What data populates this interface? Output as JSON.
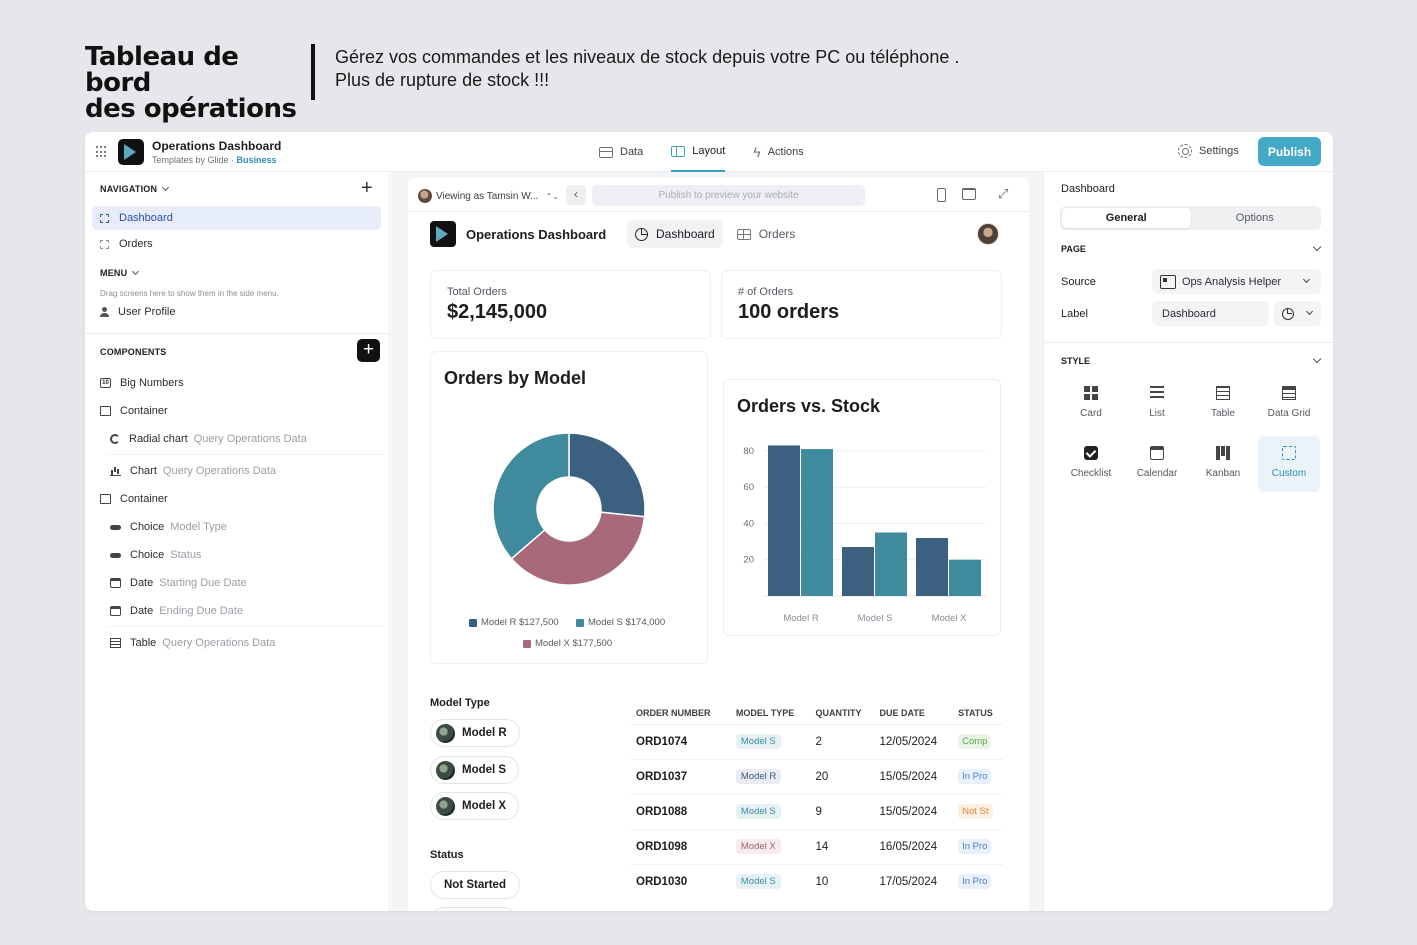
{
  "hero": {
    "title_line1": "Tableau de bord",
    "title_line2": "des opérations",
    "subtitle_line1": "Gérez vos commandes et les niveaux de stock depuis votre PC ou téléphone .",
    "subtitle_line2": "Plus de rupture de stock  !!!"
  },
  "topbar": {
    "app_name": "Operations Dashboard",
    "app_by": "Templates by Glide · ",
    "app_plan": "Business",
    "tabs": [
      "Data",
      "Layout",
      "Actions"
    ],
    "settings": "Settings",
    "publish": "Publish"
  },
  "left": {
    "navigation_label": "NAVIGATION",
    "nav_items": [
      "Dashboard",
      "Orders"
    ],
    "menu_label": "MENU",
    "menu_hint": "Drag screens here to show them in the side menu.",
    "user_profile": "User Profile",
    "components_label": "COMPONENTS",
    "components": [
      {
        "name": "Big Numbers",
        "sub": ""
      },
      {
        "name": "Container",
        "sub": ""
      },
      {
        "name": "Radial chart",
        "sub": "Query Operations Data"
      },
      {
        "name": "Chart",
        "sub": "Query Operations Data"
      },
      {
        "name": "Container",
        "sub": ""
      },
      {
        "name": "Choice",
        "sub": "Model Type"
      },
      {
        "name": "Choice",
        "sub": "Status"
      },
      {
        "name": "Date",
        "sub": "Starting Due Date"
      },
      {
        "name": "Date",
        "sub": "Ending Due Date"
      },
      {
        "name": "Table",
        "sub": "Query Operations Data"
      }
    ]
  },
  "preview": {
    "viewing_as": "Viewing as Tamsin W...",
    "url_placeholder": "Publish to preview your website",
    "site_title": "Operations Dashboard",
    "site_nav": [
      "Dashboard",
      "Orders"
    ],
    "stats": [
      {
        "label": "Total Orders",
        "value": "$2,145,000"
      },
      {
        "label": "# of Orders",
        "value": "100 orders"
      }
    ],
    "filters": {
      "model_type_label": "Model Type",
      "model_types": [
        "Model R",
        "Model S",
        "Model X"
      ],
      "status_label": "Status",
      "statuses": [
        "Not Started"
      ]
    },
    "table": {
      "headers": [
        "ORDER NUMBER",
        "MODEL TYPE",
        "QUANTITY",
        "DUE DATE",
        "STATUS"
      ],
      "rows": [
        {
          "order": "ORD1074",
          "model": "Model S",
          "qty": "2",
          "due": "12/05/2024",
          "status": "Comp"
        },
        {
          "order": "ORD1037",
          "model": "Model R",
          "qty": "20",
          "due": "15/05/2024",
          "status": "In Pro"
        },
        {
          "order": "ORD1088",
          "model": "Model S",
          "qty": "9",
          "due": "15/05/2024",
          "status": "Not St"
        },
        {
          "order": "ORD1098",
          "model": "Model X",
          "qty": "14",
          "due": "16/05/2024",
          "status": "In Pro"
        },
        {
          "order": "ORD1030",
          "model": "Model S",
          "qty": "10",
          "due": "17/05/2024",
          "status": "In Pro"
        }
      ]
    }
  },
  "chart_data": [
    {
      "type": "pie",
      "title": "Orders by Model",
      "categories": [
        "Model R",
        "Model S",
        "Model X"
      ],
      "values": [
        127500,
        174000,
        177500
      ],
      "legend_labels": [
        "Model R $127,500",
        "Model S $174,000",
        "Model X $177,500"
      ],
      "colors": [
        "#3c6080",
        "#3f8a9c",
        "#a8697a"
      ],
      "donut": true,
      "legend_position": "bottom"
    },
    {
      "type": "bar",
      "title": "Orders vs. Stock",
      "categories": [
        "Model R",
        "Model S",
        "Model X"
      ],
      "series": [
        {
          "values": [
            83,
            27,
            32
          ],
          "color": "#3c6080"
        },
        {
          "values": [
            81,
            35,
            20
          ],
          "color": "#3f8a9c"
        }
      ],
      "yticks": [
        20,
        40,
        60,
        80
      ],
      "ylim": [
        0,
        86
      ],
      "grid": true
    }
  ],
  "right": {
    "title": "Dashboard",
    "tabs": [
      "General",
      "Options"
    ],
    "page_label": "PAGE",
    "source_label": "Source",
    "source_value": "Ops Analysis Helper",
    "label_label": "Label",
    "label_value": "Dashboard",
    "style_label": "STYLE",
    "styles": [
      "Card",
      "List",
      "Table",
      "Data Grid",
      "Checklist",
      "Calendar",
      "Kanban",
      "Custom"
    ],
    "selected_style": "Custom"
  }
}
